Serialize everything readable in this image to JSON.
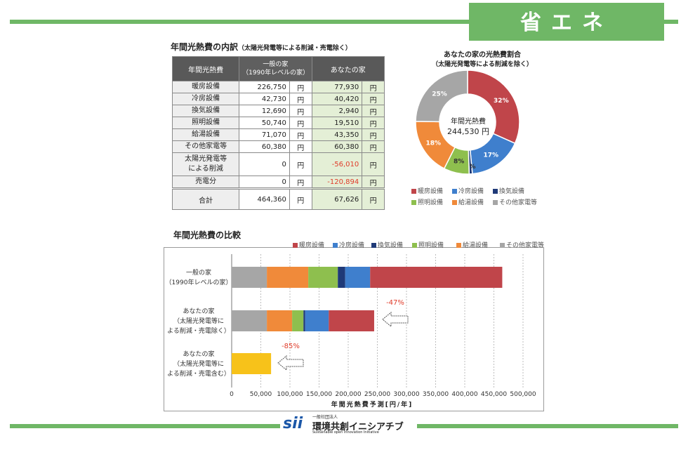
{
  "header_tag": "省エネ",
  "table": {
    "title": "年間光熱費の内訳",
    "title_note": "（太陽光発電等による削減・売電除く）",
    "col_item": "年間光熱費",
    "col_general_1": "一般の家",
    "col_general_2": "（1990年レベルの家）",
    "col_yours": "あなたの家",
    "unit": "円",
    "rows": [
      {
        "label": "暖房設備",
        "general": "226,750",
        "yours": "77,930",
        "neg": false
      },
      {
        "label": "冷房設備",
        "general": "42,730",
        "yours": "40,420",
        "neg": false
      },
      {
        "label": "換気設備",
        "general": "12,690",
        "yours": "2,940",
        "neg": false
      },
      {
        "label": "照明設備",
        "general": "50,740",
        "yours": "19,510",
        "neg": false
      },
      {
        "label": "給湯設備",
        "general": "71,070",
        "yours": "43,350",
        "neg": false
      },
      {
        "label": "その他家電等",
        "general": "60,380",
        "yours": "60,380",
        "neg": false
      },
      {
        "label": "太陽光発電等\nによる削減",
        "general": "0",
        "yours": "-56,010",
        "neg": true
      },
      {
        "label": "売電分",
        "general": "0",
        "yours": "-120,894",
        "neg": true
      }
    ],
    "total_label": "合計",
    "total_general": "464,360",
    "total_yours": "67,626"
  },
  "colors": {
    "heating": "#c0454a",
    "cooling": "#3f7fcd",
    "ventilation": "#1f3a78",
    "lighting": "#8ebf4e",
    "hotwater": "#f08a3a",
    "other": "#a6a6a6",
    "solar_total": "#f7c21a",
    "accent_green": "#6fb766",
    "red_text": "#e03c2a"
  },
  "chart_data": [
    {
      "type": "pie",
      "title": "あなたの家の光熱費割合",
      "subtitle": "（太陽光発電等による削減を除く）",
      "center_label": "年間光熱費",
      "center_value": "244,530",
      "center_unit": "円",
      "labels": [
        "暖房設備",
        "冷房設備",
        "換気設備",
        "照明設備",
        "給湯設備",
        "その他家電等"
      ],
      "values": [
        32,
        17,
        1,
        8,
        18,
        25
      ],
      "value_labels": [
        "32%",
        "17%",
        "1%",
        "8%",
        "18%",
        "25%"
      ],
      "legend_position": "bottom"
    },
    {
      "type": "bar",
      "orientation": "horizontal",
      "stacked": true,
      "title": "年間光熱費の比較",
      "xlabel": "年間光熱費予測[円/年]",
      "xlim": [
        0,
        500000
      ],
      "xticks": [
        "0",
        "50,000",
        "100,000",
        "150,000",
        "200,000",
        "250,000",
        "300,000",
        "350,000",
        "400,000",
        "450,000",
        "500,000"
      ],
      "categories": [
        "一般の家\n（1990年レベルの家）",
        "あなたの家\n（太陽光発電等に\nよる削減・売電除く）",
        "あなたの家\n（太陽光発電等に\nよる削減・売電含む）"
      ],
      "series": [
        {
          "name": "その他家電等",
          "values": [
            60380,
            60380,
            0
          ]
        },
        {
          "name": "給湯設備",
          "values": [
            71070,
            43350,
            0
          ]
        },
        {
          "name": "照明設備",
          "values": [
            50740,
            19510,
            0
          ]
        },
        {
          "name": "換気設備",
          "values": [
            12690,
            2940,
            0
          ]
        },
        {
          "name": "冷房設備",
          "values": [
            42730,
            40420,
            0
          ]
        },
        {
          "name": "暖房設備",
          "values": [
            226750,
            77930,
            0
          ]
        },
        {
          "values": [
            0,
            0,
            67626
          ]
        }
      ],
      "legend": [
        "暖房設備",
        "冷房設備",
        "換気設備",
        "照明設備",
        "給湯設備",
        "その他家電等"
      ],
      "legend_position": "top-right",
      "grid": true,
      "annotations": [
        "-47%",
        "-85%"
      ]
    }
  ],
  "logo": {
    "mark": "sii",
    "small": "一般社団法人",
    "name": "環境共創イニシアチブ",
    "en": "Sustainable open Innovation Initiative"
  }
}
